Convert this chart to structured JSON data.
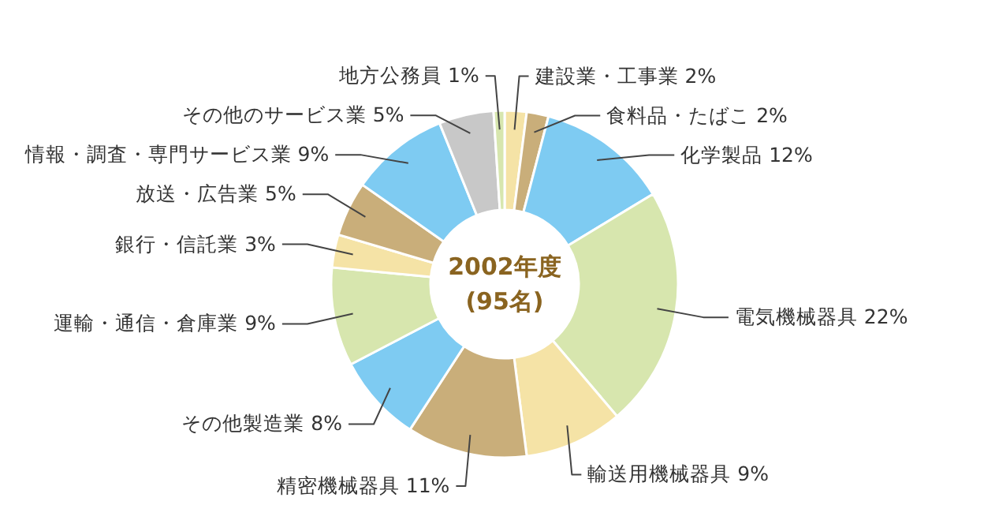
{
  "chart_data": {
    "type": "donut",
    "categories": [
      "建設業・工事業",
      "食料品・たばこ",
      "化学製品",
      "電気機械器具",
      "輸送用機械器具",
      "精密機械器具",
      "その他製造業",
      "運輸・通信・倉庫業",
      "銀行・信託業",
      "放送・広告業",
      "情報・調査・専門サービス業",
      "その他のサービス業",
      "地方公務員"
    ],
    "values": [
      2,
      2,
      12,
      22,
      9,
      11,
      8,
      9,
      3,
      5,
      9,
      5,
      1
    ],
    "value_labels": [
      "2%",
      "2%",
      "12%",
      "22%",
      "9%",
      "11%",
      "8%",
      "9%",
      "3%",
      "5%",
      "9%",
      "5%",
      "1%"
    ],
    "colors": [
      "#f5e3a6",
      "#c9ae7a",
      "#7ecbf2",
      "#d7e6ae",
      "#f5e3a6",
      "#c9ae7a",
      "#7ecbf2",
      "#d7e6ae",
      "#f5e3a6",
      "#c9ae7a",
      "#7ecbf2",
      "#c8c8c8",
      "#d7e6ae"
    ],
    "annotations": [
      "2002年度",
      "(95名)"
    ]
  }
}
